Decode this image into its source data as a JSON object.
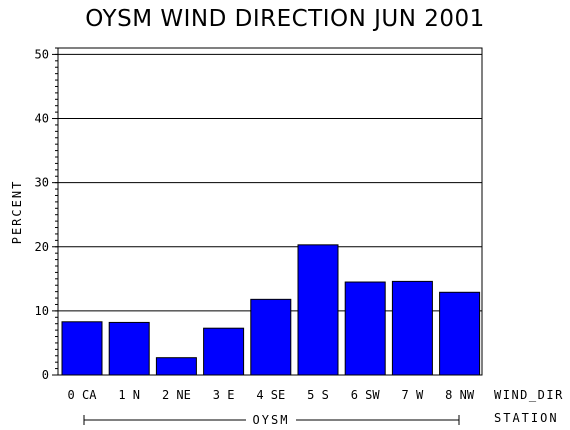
{
  "chart_data": {
    "type": "bar",
    "title": "OYSM WIND DIRECTION JUN 2001",
    "ylabel": "PERCENT",
    "xlabel": "WIND_DIR",
    "group_label": "STATION",
    "group_name": "OYSM",
    "categories": [
      "0 CA",
      "1 N",
      "2 NE",
      "3 E",
      "4 SE",
      "5 S",
      "6 SW",
      "7 W",
      "8 NW"
    ],
    "values": [
      8.3,
      8.2,
      2.7,
      7.3,
      11.8,
      20.3,
      14.5,
      14.6,
      12.9
    ],
    "ylim": [
      0,
      51
    ],
    "yticks": [
      "0",
      "10",
      "20",
      "30",
      "40",
      "50"
    ],
    "grid": true,
    "bar_color": "#0000ff"
  }
}
